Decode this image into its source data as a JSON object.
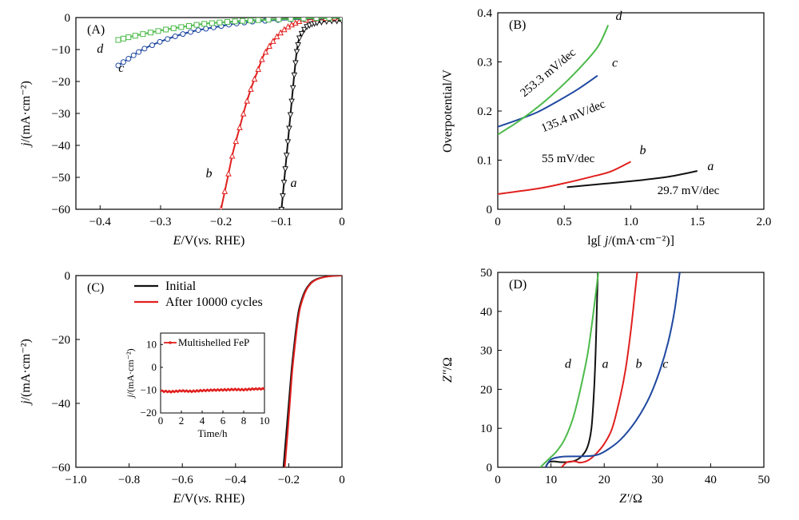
{
  "chart_data": [
    {
      "id": "A",
      "type": "line",
      "panel_label": "(A)",
      "xlabel": {
        "sym": "E",
        "unit": "/V(",
        "vs": "vs.",
        "ref": " RHE)"
      },
      "ylabel": {
        "sym": "j",
        "unit": "/(mA·cm⁻²)"
      },
      "xlim": [
        -0.44,
        0.0
      ],
      "ylim": [
        -60,
        0
      ],
      "xticks": [
        -0.4,
        -0.3,
        -0.2,
        -0.1,
        0
      ],
      "xtick_labels": [
        "−0.4",
        "−0.3",
        "−0.2",
        "−0.1",
        "0"
      ],
      "yticks": [
        -60,
        -50,
        -40,
        -30,
        -20,
        -10,
        0
      ],
      "ytick_labels": [
        "−60",
        "−50",
        "−40",
        "−30",
        "−20",
        "−10",
        "0"
      ],
      "series": [
        {
          "name": "a",
          "color": "#111111",
          "marker": "triangle-down",
          "points": [
            [
              -0.1,
              -60
            ],
            [
              -0.095,
              -50
            ],
            [
              -0.09,
              -40
            ],
            [
              -0.085,
              -30
            ],
            [
              -0.08,
              -20
            ],
            [
              -0.075,
              -11
            ],
            [
              -0.07,
              -6
            ],
            [
              -0.06,
              -3
            ],
            [
              -0.05,
              -2
            ],
            [
              -0.04,
              -1.5
            ],
            [
              -0.02,
              -1
            ],
            [
              0,
              -1
            ]
          ]
        },
        {
          "name": "b",
          "color": "#e0201e",
          "marker": "triangle-up",
          "points": [
            [
              -0.2,
              -60
            ],
            [
              -0.19,
              -51
            ],
            [
              -0.18,
              -42
            ],
            [
              -0.17,
              -35
            ],
            [
              -0.16,
              -28
            ],
            [
              -0.15,
              -22
            ],
            [
              -0.14,
              -17
            ],
            [
              -0.13,
              -12
            ],
            [
              -0.12,
              -9
            ],
            [
              -0.11,
              -6.5
            ],
            [
              -0.1,
              -4.5
            ],
            [
              -0.09,
              -3
            ],
            [
              -0.08,
              -2
            ],
            [
              -0.07,
              -1.2
            ],
            [
              -0.05,
              -0.5
            ],
            [
              -0.02,
              -0.2
            ],
            [
              0,
              0
            ]
          ]
        },
        {
          "name": "c",
          "color": "#1f48a0",
          "marker": "circle",
          "points": [
            [
              -0.37,
              -15
            ],
            [
              -0.35,
              -12.5
            ],
            [
              -0.33,
              -10
            ],
            [
              -0.3,
              -7.5
            ],
            [
              -0.27,
              -5.5
            ],
            [
              -0.24,
              -4
            ],
            [
              -0.21,
              -3
            ],
            [
              -0.18,
              -2
            ],
            [
              -0.15,
              -1.3
            ],
            [
              -0.1,
              -0.7
            ],
            [
              -0.05,
              -0.3
            ],
            [
              0,
              0
            ]
          ]
        },
        {
          "name": "d",
          "color": "#4cba4a",
          "marker": "square",
          "points": [
            [
              -0.37,
              -7
            ],
            [
              -0.35,
              -6
            ],
            [
              -0.32,
              -4.8
            ],
            [
              -0.29,
              -3.7
            ],
            [
              -0.26,
              -2.8
            ],
            [
              -0.23,
              -2
            ],
            [
              -0.2,
              -1.5
            ],
            [
              -0.17,
              -1.1
            ],
            [
              -0.14,
              -0.8
            ],
            [
              -0.1,
              -0.5
            ],
            [
              -0.05,
              -0.2
            ],
            [
              0,
              0
            ]
          ]
        }
      ],
      "curve_labels": [
        {
          "text": "a",
          "x": -0.08,
          "y": -53
        },
        {
          "text": "b",
          "x": -0.22,
          "y": -50
        },
        {
          "text": "c",
          "x": -0.365,
          "y": -17
        },
        {
          "text": "d",
          "x": -0.4,
          "y": -11
        }
      ]
    },
    {
      "id": "B",
      "type": "line",
      "panel_label": "(B)",
      "xlabel": {
        "pre": "lg[ ",
        "sym": "j",
        "unit": "/(mA·cm⁻²)]"
      },
      "ylabel": {
        "unit": "Overpotential/V"
      },
      "xlim": [
        0,
        2.0
      ],
      "ylim": [
        0,
        0.4
      ],
      "xticks": [
        0,
        0.5,
        1.0,
        1.5,
        2.0
      ],
      "xtick_labels": [
        "0",
        "0.5",
        "1.0",
        "1.5",
        "2.0"
      ],
      "yticks": [
        0,
        0.1,
        0.2,
        0.3,
        0.4
      ],
      "ytick_labels": [
        "0",
        "0.1",
        "0.2",
        "0.3",
        "0.4"
      ],
      "series": [
        {
          "name": "a",
          "color": "#111111",
          "points": [
            [
              0.52,
              0.045
            ],
            [
              0.8,
              0.052
            ],
            [
              1.1,
              0.06
            ],
            [
              1.3,
              0.067
            ],
            [
              1.5,
              0.078
            ]
          ]
        },
        {
          "name": "b",
          "color": "#e0201e",
          "points": [
            [
              0,
              0.031
            ],
            [
              0.3,
              0.042
            ],
            [
              0.5,
              0.053
            ],
            [
              0.7,
              0.066
            ],
            [
              0.85,
              0.077
            ],
            [
              1.0,
              0.097
            ]
          ]
        },
        {
          "name": "c",
          "color": "#1f48a0",
          "points": [
            [
              0,
              0.168
            ],
            [
              0.15,
              0.182
            ],
            [
              0.3,
              0.198
            ],
            [
              0.45,
              0.22
            ],
            [
              0.6,
              0.244
            ],
            [
              0.75,
              0.272
            ]
          ]
        },
        {
          "name": "d",
          "color": "#4cba4a",
          "points": [
            [
              0,
              0.152
            ],
            [
              0.15,
              0.178
            ],
            [
              0.3,
              0.208
            ],
            [
              0.45,
              0.243
            ],
            [
              0.6,
              0.283
            ],
            [
              0.75,
              0.33
            ],
            [
              0.83,
              0.375
            ]
          ]
        }
      ],
      "curve_labels": [
        {
          "text": "a",
          "x": 1.6,
          "y": 0.08
        },
        {
          "text": "b",
          "x": 1.09,
          "y": 0.112
        },
        {
          "text": "c",
          "x": 0.88,
          "y": 0.29
        },
        {
          "text": "d",
          "x": 0.91,
          "y": 0.385
        }
      ],
      "annotations": [
        {
          "text": "253.3 mV/dec",
          "x": 0.2,
          "y": 0.228,
          "angle": -40
        },
        {
          "text": "135.4 mV/dec",
          "x": 0.34,
          "y": 0.157,
          "angle": -22
        },
        {
          "text": "55 mV/dec",
          "x": 0.33,
          "y": 0.096,
          "angle": 0
        },
        {
          "text": "29.7 mV/dec",
          "x": 1.2,
          "y": 0.031,
          "angle": 0
        }
      ]
    },
    {
      "id": "C",
      "type": "line",
      "panel_label": "(C)",
      "xlabel": {
        "sym": "E",
        "unit": "/V(",
        "vs": "vs.",
        "ref": " RHE)"
      },
      "ylabel": {
        "sym": "j",
        "unit": "/(mA·cm⁻²)"
      },
      "xlim": [
        -1.0,
        0.0
      ],
      "ylim": [
        -60,
        0
      ],
      "xticks": [
        -1.0,
        -0.8,
        -0.6,
        -0.4,
        -0.2,
        0
      ],
      "xtick_labels": [
        "−1.0",
        "−0.8",
        "−0.6",
        "−0.4",
        "−0.2",
        "0"
      ],
      "yticks": [
        -60,
        -40,
        -20,
        0
      ],
      "ytick_labels": [
        "−60",
        "−40",
        "−20",
        "0"
      ],
      "legend": [
        {
          "label": "Initial",
          "color": "#111111"
        },
        {
          "label": "After 10000 cycles",
          "color": "#e0201e"
        }
      ],
      "series": [
        {
          "name": "Initial",
          "color": "#111111",
          "points": [
            [
              -0.22,
              -60
            ],
            [
              -0.21,
              -50
            ],
            [
              -0.2,
              -40
            ],
            [
              -0.19,
              -30
            ],
            [
              -0.18,
              -22
            ],
            [
              -0.17,
              -15
            ],
            [
              -0.16,
              -10
            ],
            [
              -0.14,
              -5
            ],
            [
              -0.12,
              -2.5
            ],
            [
              -0.1,
              -1.3
            ],
            [
              -0.07,
              -0.5
            ],
            [
              -0.03,
              -0.1
            ],
            [
              0,
              0
            ]
          ]
        },
        {
          "name": "After 10000 cycles",
          "color": "#e0201e",
          "points": [
            [
              -0.215,
              -60
            ],
            [
              -0.205,
              -50
            ],
            [
              -0.196,
              -40
            ],
            [
              -0.187,
              -30
            ],
            [
              -0.177,
              -22
            ],
            [
              -0.167,
              -15
            ],
            [
              -0.157,
              -10
            ],
            [
              -0.137,
              -5
            ],
            [
              -0.117,
              -2.5
            ],
            [
              -0.097,
              -1.3
            ],
            [
              -0.067,
              -0.5
            ],
            [
              -0.03,
              -0.1
            ],
            [
              0,
              0
            ]
          ]
        }
      ],
      "inset": {
        "type": "line",
        "series_label": "Multishelled FeP",
        "color": "#e0201e",
        "xlabel": "Time/h",
        "ylabel": {
          "sym": "j",
          "unit": "/(mA·cm⁻²)"
        },
        "xlim": [
          0,
          10
        ],
        "ylim": [
          -20,
          15
        ],
        "xticks": [
          0,
          2,
          4,
          6,
          8,
          10
        ],
        "xtick_labels": [
          "0",
          "2",
          "4",
          "6",
          "8",
          "10"
        ],
        "yticks": [
          -20,
          -10,
          0,
          10
        ],
        "ytick_labels": [
          "−20",
          "−10",
          "0",
          "10"
        ],
        "points": [
          [
            0,
            -10.4
          ],
          [
            1,
            -10.7
          ],
          [
            2,
            -10.3
          ],
          [
            3,
            -10.5
          ],
          [
            4,
            -10.2
          ],
          [
            5,
            -10.0
          ],
          [
            6,
            -9.9
          ],
          [
            7,
            -9.7
          ],
          [
            8,
            -9.8
          ],
          [
            9,
            -9.5
          ],
          [
            10,
            -9.4
          ]
        ]
      }
    },
    {
      "id": "D",
      "type": "line",
      "panel_label": "(D)",
      "xlabel": {
        "sym": "Z′",
        "unit": "/Ω"
      },
      "ylabel": {
        "sym": "Z″",
        "unit": "/Ω"
      },
      "xlim": [
        0,
        50
      ],
      "ylim": [
        0,
        50
      ],
      "xticks": [
        0,
        10,
        20,
        30,
        40,
        50
      ],
      "xtick_labels": [
        "0",
        "10",
        "20",
        "30",
        "40",
        "50"
      ],
      "yticks": [
        0,
        10,
        20,
        30,
        40,
        50
      ],
      "ytick_labels": [
        "0",
        "10",
        "20",
        "30",
        "40",
        "50"
      ],
      "series": [
        {
          "name": "a",
          "color": "#111111",
          "points": [
            [
              9,
              0
            ],
            [
              9.5,
              1.2
            ],
            [
              10.5,
              1.5
            ],
            [
              12,
              1.3
            ],
            [
              14,
              1.5
            ],
            [
              15.5,
              2.5
            ],
            [
              16.8,
              5
            ],
            [
              17.6,
              10
            ],
            [
              18.1,
              20
            ],
            [
              18.4,
              30
            ],
            [
              18.6,
              40
            ],
            [
              18.8,
              50
            ]
          ]
        },
        {
          "name": "b",
          "color": "#e0201e",
          "points": [
            [
              12,
              0
            ],
            [
              13,
              1.3
            ],
            [
              14.5,
              1.5
            ],
            [
              15.5,
              1.2
            ],
            [
              17,
              1.8
            ],
            [
              18.5,
              3.5
            ],
            [
              20,
              6
            ],
            [
              21.5,
              10
            ],
            [
              23,
              18
            ],
            [
              24,
              25
            ],
            [
              25,
              35
            ],
            [
              25.8,
              45
            ],
            [
              26.2,
              50
            ]
          ]
        },
        {
          "name": "c",
          "color": "#1f48a0",
          "points": [
            [
              9,
              0
            ],
            [
              10,
              2
            ],
            [
              12,
              2.7
            ],
            [
              15,
              2.8
            ],
            [
              18,
              3
            ],
            [
              20,
              4
            ],
            [
              23,
              7
            ],
            [
              26,
              12
            ],
            [
              28.5,
              18
            ],
            [
              30.5,
              25
            ],
            [
              32,
              32
            ],
            [
              33.2,
              40
            ],
            [
              34.2,
              50
            ]
          ]
        },
        {
          "name": "d",
          "color": "#4cba4a",
          "points": [
            [
              8,
              0
            ],
            [
              9.5,
              2
            ],
            [
              11,
              4
            ],
            [
              12.5,
              7
            ],
            [
              14,
              12
            ],
            [
              15,
              17
            ],
            [
              16,
              23
            ],
            [
              17,
              30
            ],
            [
              18,
              40
            ],
            [
              18.9,
              50
            ]
          ]
        }
      ],
      "curve_labels": [
        {
          "text": "d",
          "x": 13.2,
          "y": 25.5
        },
        {
          "text": "a",
          "x": 20.2,
          "y": 25.5
        },
        {
          "text": "b",
          "x": 26.5,
          "y": 25.5
        },
        {
          "text": "c",
          "x": 31.5,
          "y": 25.5
        }
      ]
    }
  ]
}
